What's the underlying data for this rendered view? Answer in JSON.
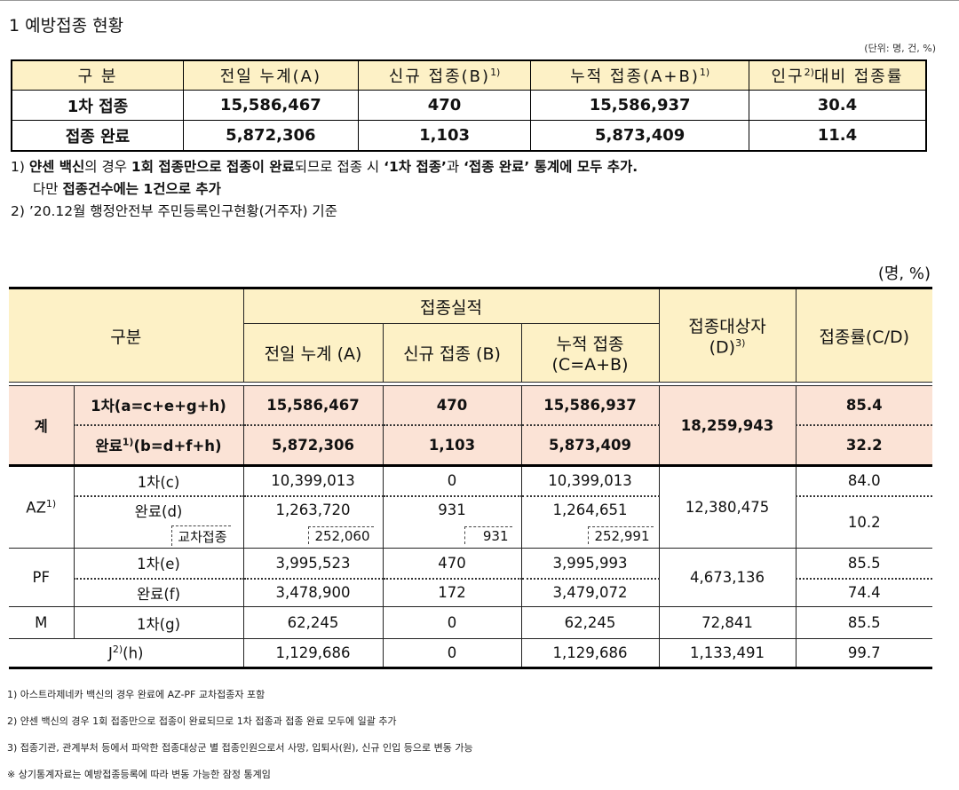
{
  "title": "1 예방접종 현황",
  "unit_small": "(단위: 명, 건, %)",
  "unit_large": "(명, %)",
  "summary_table": {
    "headers": [
      "구 분",
      "전일 누계(A)",
      "신규 접종(B)",
      "누적 접종(A+B)",
      "인구",
      "대비 접종률"
    ],
    "header_sups": [
      "1)",
      "1)",
      "2)"
    ],
    "rows": [
      [
        "1차 접종",
        "15,586,467",
        "470",
        "15,586,937",
        "30.4"
      ],
      [
        "접종 완료",
        "5,872,306",
        "1,103",
        "5,873,409",
        "11.4"
      ]
    ]
  },
  "notes_top": {
    "n1_a": "1) ",
    "n1_b": "얀센 백신",
    "n1_c": "의 경우 ",
    "n1_d": "1회 접종만으로 접종이 완료",
    "n1_e": "되므로 접종 시 ",
    "n1_f": "‘1차 접종’",
    "n1_g": "과 ",
    "n1_h": "‘접종 완료’ 통계에 모두 추가.",
    "n1_line2_a": "다만 ",
    "n1_line2_b": "접종건수에는 1건으로 추가",
    "n2": "2) ’20.12월 행정안전부 주민등록인구현황(거주자) 기준"
  },
  "detail_table": {
    "h_group": "구분",
    "h_perf": "접종실적",
    "h_prev": "전일 누계 (A)",
    "h_new": "신규 접종 (B)",
    "h_cum1": "누적 접종",
    "h_cum2": "(C=A+B)",
    "h_target1": "접종대상자",
    "h_target2": "(D)",
    "h_target_sup": "3)",
    "h_rate": "접종률(C/D)",
    "total_label": "계",
    "total_r1_label": "1차(a=c+e+g+h)",
    "total_r2_label_a": "완료",
    "total_r2_sup": "1)",
    "total_r2_label_b": "(b=d+f+h)",
    "total_r1": [
      "15,586,467",
      "470",
      "15,586,937",
      "85.4"
    ],
    "total_r2": [
      "5,872,306",
      "1,103",
      "5,873,409",
      "32.2"
    ],
    "total_target": "18,259,943",
    "az_label": "AZ",
    "az_sup": "1)",
    "az_r1_label": "1차(c)",
    "az_r1": [
      "10,399,013",
      "0",
      "10,399,013",
      "84.0"
    ],
    "az_r2_label": "완료(d)",
    "az_r2": [
      "1,263,720",
      "931",
      "1,264,651",
      "10.2"
    ],
    "az_cross_label": "교차접종",
    "az_cross": [
      "252,060",
      "931",
      "252,991"
    ],
    "az_target": "12,380,475",
    "pf_label": "PF",
    "pf_r1_label": "1차(e)",
    "pf_r1": [
      "3,995,523",
      "470",
      "3,995,993",
      "85.5"
    ],
    "pf_r2_label": "완료(f)",
    "pf_r2": [
      "3,478,900",
      "172",
      "3,479,072",
      "74.4"
    ],
    "pf_target": "4,673,136",
    "m_label": "M",
    "m_r_label": "1차(g)",
    "m_r": [
      "62,245",
      "0",
      "62,245",
      "72,841",
      "85.5"
    ],
    "j_label": "J",
    "j_sup": "2)",
    "j_label_b": "(h)",
    "j_r": [
      "1,129,686",
      "0",
      "1,129,686",
      "1,133,491",
      "99.7"
    ]
  },
  "notes_bottom": [
    "1) 아스트라제네카 백신의 경우 완료에 AZ-PF 교차접종자 포함",
    "2) 얀센 백신의 경우 1회 접종만으로 접종이 완료되므로 1차 접종과 접종 완료 모두에 일괄 추가",
    "3) 접종기관, 관계부처 등에서 파악한 접종대상군 별 접종인원으로서 사망, 입퇴사(원), 신규 인입 등으로 변동 가능",
    "※ 상기통계자료는 예방접종등록에 따라 변동 가능한 잠정 통계임"
  ]
}
